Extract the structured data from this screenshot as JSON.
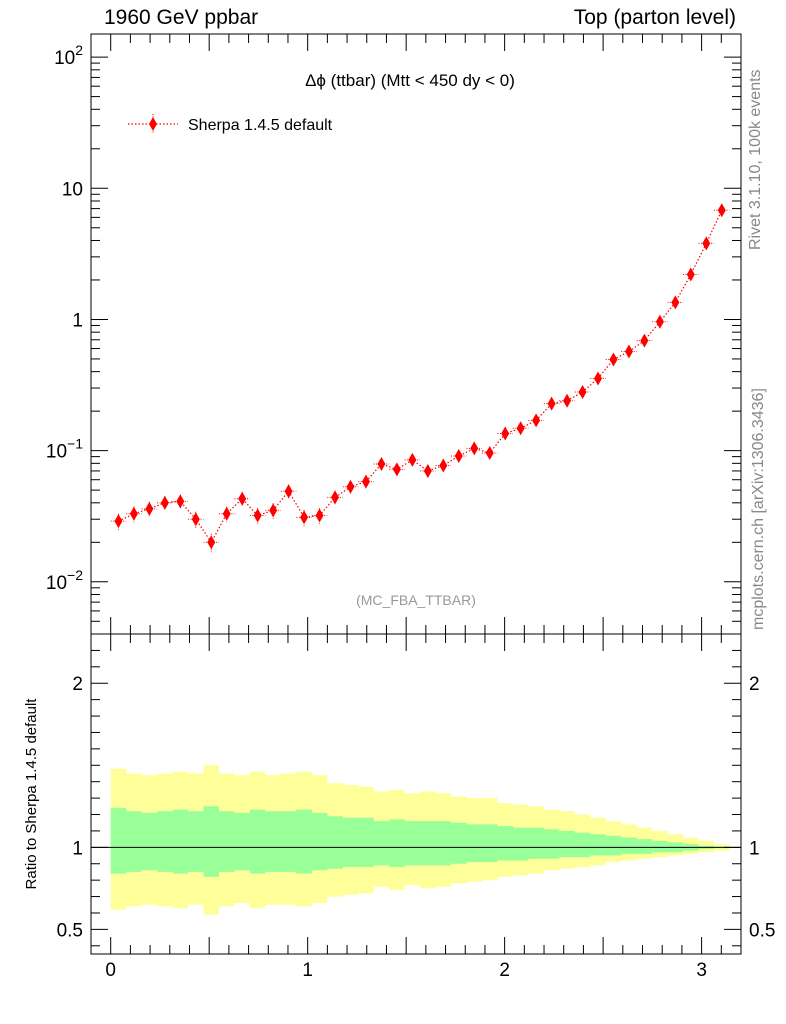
{
  "header": {
    "left": "1960 GeV ppbar",
    "right": "Top (parton level)"
  },
  "side_labels": {
    "rivet": "Rivet 3.1.10,  100k events",
    "mcplots": "mcplots.cern.ch [arXiv:1306.3436]"
  },
  "chart_data": [
    {
      "type": "scatter",
      "title": "Δϕ (ttbar) (Mtt < 450 dy < 0)",
      "annotation": "(MC_FBA_TTBAR)",
      "legend": {
        "placement": "top-left",
        "entries": [
          "Sherpa 1.4.5 default"
        ]
      },
      "xlim": [
        -0.1,
        3.2
      ],
      "ylim": [
        0.004,
        150
      ],
      "yscale": "log",
      "xticks": [
        "0",
        "1",
        "2",
        "3"
      ],
      "yticks": [
        "10^-2",
        "10^-1",
        "1",
        "10",
        "10^2"
      ],
      "series": [
        {
          "name": "Sherpa 1.4.5 default",
          "color": "#ff0000",
          "marker": "diamond",
          "line": "dotted",
          "x": [
            0.0393,
            0.1178,
            0.1963,
            0.2749,
            0.3534,
            0.432,
            0.5105,
            0.589,
            0.6676,
            0.7461,
            0.8247,
            0.9032,
            0.9817,
            1.0603,
            1.1388,
            1.2174,
            1.2959,
            1.3744,
            1.453,
            1.5315,
            1.6101,
            1.6886,
            1.7671,
            1.8457,
            1.9242,
            2.0028,
            2.0813,
            2.1598,
            2.2384,
            2.3169,
            2.3955,
            2.474,
            2.5525,
            2.6311,
            2.7096,
            2.7882,
            2.8667,
            2.9452,
            3.0238,
            3.1023
          ],
          "y": [
            0.029,
            0.033,
            0.036,
            0.04,
            0.041,
            0.03,
            0.02,
            0.033,
            0.043,
            0.032,
            0.035,
            0.049,
            0.031,
            0.032,
            0.044,
            0.053,
            0.058,
            0.079,
            0.072,
            0.085,
            0.07,
            0.077,
            0.091,
            0.104,
            0.096,
            0.135,
            0.148,
            0.17,
            0.228,
            0.24,
            0.28,
            0.355,
            0.495,
            0.57,
            0.69,
            0.96,
            1.35,
            2.2,
            3.8,
            6.8
          ],
          "yerr": [
            0.004,
            0.0045,
            0.0048,
            0.0052,
            0.0052,
            0.0042,
            0.0032,
            0.0045,
            0.0055,
            0.0044,
            0.0048,
            0.006,
            0.0043,
            0.0044,
            0.0055,
            0.006,
            0.0065,
            0.0085,
            0.0078,
            0.009,
            0.0078,
            0.0083,
            0.0095,
            0.0105,
            0.0098,
            0.013,
            0.014,
            0.015,
            0.019,
            0.02,
            0.022,
            0.026,
            0.033,
            0.036,
            0.041,
            0.05,
            0.06,
            0.08,
            0.11,
            0.15
          ]
        }
      ]
    },
    {
      "type": "area",
      "ylabel": "Ratio to Sherpa 1.4.5 default",
      "xlim": [
        -0.1,
        3.2
      ],
      "ylim": [
        0.35,
        2.3
      ],
      "xticks": [
        "0",
        "1",
        "2",
        "3"
      ],
      "yticks": [
        "0.5",
        "1",
        "2"
      ],
      "reference_line": 1,
      "bands": [
        {
          "name": "2 sigma",
          "color": "#ffff99",
          "upper": [
            1.48,
            1.45,
            1.44,
            1.45,
            1.46,
            1.45,
            1.5,
            1.45,
            1.44,
            1.46,
            1.44,
            1.45,
            1.46,
            1.44,
            1.39,
            1.38,
            1.37,
            1.34,
            1.35,
            1.33,
            1.34,
            1.33,
            1.31,
            1.3,
            1.3,
            1.27,
            1.26,
            1.25,
            1.23,
            1.22,
            1.2,
            1.18,
            1.16,
            1.14,
            1.12,
            1.1,
            1.08,
            1.06,
            1.04,
            1.02
          ],
          "lower": [
            0.62,
            0.64,
            0.65,
            0.64,
            0.63,
            0.65,
            0.59,
            0.64,
            0.66,
            0.63,
            0.65,
            0.65,
            0.64,
            0.66,
            0.7,
            0.71,
            0.72,
            0.76,
            0.74,
            0.77,
            0.75,
            0.76,
            0.78,
            0.79,
            0.8,
            0.82,
            0.83,
            0.84,
            0.86,
            0.87,
            0.88,
            0.89,
            0.91,
            0.92,
            0.93,
            0.94,
            0.95,
            0.96,
            0.97,
            0.98
          ]
        },
        {
          "name": "1 sigma",
          "color": "#99ff99",
          "upper": [
            1.24,
            1.22,
            1.21,
            1.22,
            1.23,
            1.22,
            1.25,
            1.22,
            1.21,
            1.23,
            1.22,
            1.22,
            1.23,
            1.21,
            1.19,
            1.18,
            1.18,
            1.16,
            1.17,
            1.16,
            1.16,
            1.16,
            1.15,
            1.14,
            1.14,
            1.13,
            1.12,
            1.12,
            1.11,
            1.1,
            1.09,
            1.08,
            1.07,
            1.06,
            1.05,
            1.04,
            1.03,
            1.02,
            1.01,
            1.005
          ],
          "lower": [
            0.84,
            0.85,
            0.86,
            0.85,
            0.84,
            0.85,
            0.82,
            0.85,
            0.86,
            0.84,
            0.85,
            0.85,
            0.84,
            0.86,
            0.87,
            0.88,
            0.88,
            0.89,
            0.88,
            0.89,
            0.89,
            0.89,
            0.9,
            0.91,
            0.91,
            0.92,
            0.92,
            0.93,
            0.93,
            0.94,
            0.94,
            0.95,
            0.95,
            0.96,
            0.96,
            0.97,
            0.97,
            0.98,
            0.99,
            0.995
          ]
        }
      ]
    }
  ]
}
